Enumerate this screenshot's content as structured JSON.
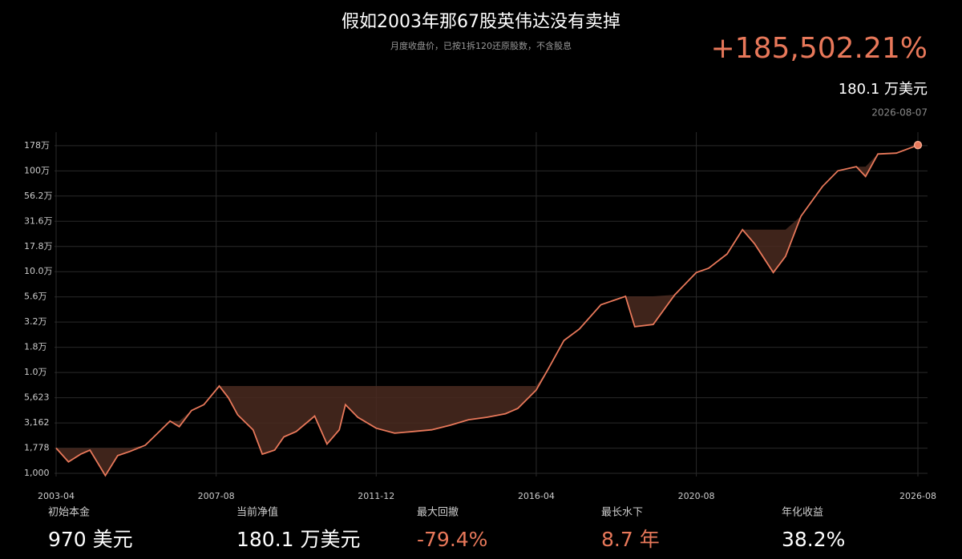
{
  "header": {
    "title": "假如2003年那67股英伟达没有卖掉",
    "subtitle": "月度收盘价，已按1拆120还原股数，不含股息",
    "return_label": "+185,502.21%",
    "value_label": "180.1 万美元",
    "date_label": "2026-08-07"
  },
  "chart_data": {
    "type": "line",
    "log_scale": true,
    "grid": true,
    "color": "#e8785a",
    "drawdown_color": "#4a2a20",
    "x": [
      "2003-04",
      "2003-08",
      "2003-12",
      "2004-03",
      "2004-08",
      "2004-12",
      "2005-04",
      "2005-09",
      "2006-01",
      "2006-05",
      "2006-08",
      "2006-12",
      "2007-04",
      "2007-09",
      "2007-12",
      "2008-03",
      "2008-08",
      "2008-11",
      "2009-03",
      "2009-06",
      "2009-10",
      "2010-04",
      "2010-08",
      "2010-12",
      "2011-02",
      "2011-06",
      "2011-12",
      "2012-06",
      "2012-12",
      "2013-06",
      "2013-12",
      "2014-06",
      "2014-12",
      "2015-06",
      "2015-10",
      "2016-04",
      "2016-08",
      "2017-01",
      "2017-06",
      "2018-01",
      "2018-09",
      "2018-12",
      "2019-06",
      "2020-01",
      "2020-08",
      "2020-12",
      "2021-06",
      "2021-11",
      "2022-03",
      "2022-09",
      "2023-01",
      "2023-06",
      "2024-01",
      "2024-06",
      "2024-12",
      "2025-03",
      "2025-07",
      "2026-01",
      "2026-08"
    ],
    "values": [
      1780,
      1300,
      1550,
      1700,
      950,
      1500,
      1650,
      1900,
      2500,
      3300,
      2900,
      4200,
      4800,
      7350,
      5600,
      3800,
      2700,
      1550,
      1700,
      2300,
      2600,
      3700,
      1950,
      2700,
      4800,
      3600,
      2800,
      2500,
      2600,
      2700,
      3000,
      3400,
      3600,
      3900,
      4400,
      6700,
      11000,
      20800,
      27000,
      47000,
      57000,
      28500,
      30000,
      59000,
      98000,
      108000,
      150000,
      261000,
      188000,
      98000,
      142000,
      355000,
      700000,
      1000000,
      1100000,
      880000,
      1470000,
      1500000,
      1801000
    ],
    "xlim": [
      "2003-04",
      "2026-08"
    ],
    "xticks": [
      "2003-04",
      "2007-08",
      "2011-12",
      "2016-04",
      "2020-08",
      "2026-08"
    ],
    "ylim": [
      930,
      2420000
    ],
    "yticks": [
      {
        "value": 1000,
        "label": "1,000"
      },
      {
        "value": 1778,
        "label": "1,778"
      },
      {
        "value": 3162,
        "label": "3,162"
      },
      {
        "value": 5623,
        "label": "5,623"
      },
      {
        "value": 10000,
        "label": "1.0万"
      },
      {
        "value": 17783,
        "label": "1.8万"
      },
      {
        "value": 31623,
        "label": "3.2万"
      },
      {
        "value": 56234,
        "label": "5.6万"
      },
      {
        "value": 100000,
        "label": "10.0万"
      },
      {
        "value": 177828,
        "label": "17.8万"
      },
      {
        "value": 316228,
        "label": "31.6万"
      },
      {
        "value": 562341,
        "label": "56.2万"
      },
      {
        "value": 1000000,
        "label": "100万"
      },
      {
        "value": 1778279,
        "label": "178万"
      }
    ]
  },
  "stats": [
    {
      "label": "初始本金",
      "value": "970 美元"
    },
    {
      "label": "当前净值",
      "value": "180.1 万美元"
    },
    {
      "label": "最大回撤",
      "value": "-79.4%"
    },
    {
      "label": "最长水下",
      "value": "8.7 年"
    },
    {
      "label": "年化收益",
      "value": "38.2%"
    }
  ]
}
